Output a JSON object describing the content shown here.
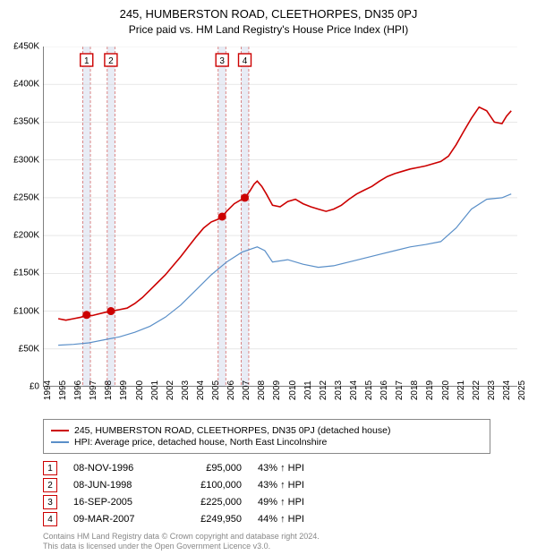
{
  "title": {
    "line1": "245, HUMBERSTON ROAD, CLEETHORPES, DN35 0PJ",
    "line2": "Price paid vs. HM Land Registry's House Price Index (HPI)"
  },
  "chart": {
    "type": "line",
    "background_color": "#ffffff",
    "grid_color": "#d9d9d9",
    "axis_color": "#000000",
    "xlim": [
      1994,
      2025
    ],
    "ylim": [
      0,
      450000
    ],
    "ytick_step": 50000,
    "yticks": [
      0,
      50000,
      100000,
      150000,
      200000,
      250000,
      300000,
      350000,
      400000,
      450000
    ],
    "ytick_labels": [
      "£0",
      "£50K",
      "£100K",
      "£150K",
      "£200K",
      "£250K",
      "£300K",
      "£350K",
      "£400K",
      "£450K"
    ],
    "xticks": [
      1994,
      1995,
      1996,
      1997,
      1998,
      1999,
      2000,
      2001,
      2002,
      2003,
      2004,
      2005,
      2006,
      2007,
      2008,
      2009,
      2010,
      2011,
      2012,
      2013,
      2014,
      2015,
      2016,
      2017,
      2018,
      2019,
      2020,
      2021,
      2022,
      2023,
      2024,
      2025
    ],
    "series": [
      {
        "id": "property",
        "label": "245, HUMBERSTON ROAD, CLEETHORPES, DN35 0PJ (detached house)",
        "color": "#cc0000",
        "line_width": 1.6,
        "data": [
          [
            1995.0,
            90000
          ],
          [
            1995.5,
            88000
          ],
          [
            1996.0,
            90000
          ],
          [
            1996.5,
            92000
          ],
          [
            1996.85,
            95000
          ],
          [
            1997.2,
            94000
          ],
          [
            1997.6,
            96000
          ],
          [
            1998.0,
            98000
          ],
          [
            1998.44,
            100000
          ],
          [
            1999.0,
            102000
          ],
          [
            1999.5,
            104000
          ],
          [
            2000.0,
            110000
          ],
          [
            2000.5,
            118000
          ],
          [
            2001.0,
            128000
          ],
          [
            2001.5,
            138000
          ],
          [
            2002.0,
            148000
          ],
          [
            2002.5,
            160000
          ],
          [
            2003.0,
            172000
          ],
          [
            2003.5,
            185000
          ],
          [
            2004.0,
            198000
          ],
          [
            2004.5,
            210000
          ],
          [
            2005.0,
            218000
          ],
          [
            2005.5,
            222000
          ],
          [
            2005.71,
            225000
          ],
          [
            2006.0,
            232000
          ],
          [
            2006.5,
            242000
          ],
          [
            2007.0,
            248000
          ],
          [
            2007.19,
            249950
          ],
          [
            2007.5,
            258000
          ],
          [
            2007.8,
            268000
          ],
          [
            2008.0,
            272000
          ],
          [
            2008.3,
            265000
          ],
          [
            2008.6,
            255000
          ],
          [
            2009.0,
            240000
          ],
          [
            2009.5,
            238000
          ],
          [
            2010.0,
            245000
          ],
          [
            2010.5,
            248000
          ],
          [
            2011.0,
            242000
          ],
          [
            2011.5,
            238000
          ],
          [
            2012.0,
            235000
          ],
          [
            2012.5,
            232000
          ],
          [
            2013.0,
            235000
          ],
          [
            2013.5,
            240000
          ],
          [
            2014.0,
            248000
          ],
          [
            2014.5,
            255000
          ],
          [
            2015.0,
            260000
          ],
          [
            2015.5,
            265000
          ],
          [
            2016.0,
            272000
          ],
          [
            2016.5,
            278000
          ],
          [
            2017.0,
            282000
          ],
          [
            2017.5,
            285000
          ],
          [
            2018.0,
            288000
          ],
          [
            2018.5,
            290000
          ],
          [
            2019.0,
            292000
          ],
          [
            2019.5,
            295000
          ],
          [
            2020.0,
            298000
          ],
          [
            2020.5,
            305000
          ],
          [
            2021.0,
            320000
          ],
          [
            2021.5,
            338000
          ],
          [
            2022.0,
            355000
          ],
          [
            2022.5,
            370000
          ],
          [
            2023.0,
            365000
          ],
          [
            2023.5,
            350000
          ],
          [
            2024.0,
            348000
          ],
          [
            2024.3,
            358000
          ],
          [
            2024.6,
            365000
          ]
        ]
      },
      {
        "id": "hpi",
        "label": "HPI: Average price, detached house, North East Lincolnshire",
        "color": "#5a8fc8",
        "line_width": 1.2,
        "data": [
          [
            1995.0,
            55000
          ],
          [
            1996.0,
            56000
          ],
          [
            1997.0,
            58000
          ],
          [
            1998.0,
            62000
          ],
          [
            1999.0,
            66000
          ],
          [
            2000.0,
            72000
          ],
          [
            2001.0,
            80000
          ],
          [
            2002.0,
            92000
          ],
          [
            2003.0,
            108000
          ],
          [
            2004.0,
            128000
          ],
          [
            2005.0,
            148000
          ],
          [
            2006.0,
            165000
          ],
          [
            2007.0,
            178000
          ],
          [
            2008.0,
            185000
          ],
          [
            2008.5,
            180000
          ],
          [
            2009.0,
            165000
          ],
          [
            2010.0,
            168000
          ],
          [
            2011.0,
            162000
          ],
          [
            2012.0,
            158000
          ],
          [
            2013.0,
            160000
          ],
          [
            2014.0,
            165000
          ],
          [
            2015.0,
            170000
          ],
          [
            2016.0,
            175000
          ],
          [
            2017.0,
            180000
          ],
          [
            2018.0,
            185000
          ],
          [
            2019.0,
            188000
          ],
          [
            2020.0,
            192000
          ],
          [
            2021.0,
            210000
          ],
          [
            2022.0,
            235000
          ],
          [
            2023.0,
            248000
          ],
          [
            2024.0,
            250000
          ],
          [
            2024.6,
            255000
          ]
        ]
      }
    ],
    "sale_markers": {
      "band_fill": "#e8ecf5",
      "band_dash_color": "#d46a6a",
      "dot_color": "#cc0000",
      "dot_radius": 4.5,
      "box_border": "#cc0000",
      "items": [
        {
          "n": "1",
          "x": 1996.85,
          "y": 95000,
          "band": [
            1996.6,
            1997.1
          ]
        },
        {
          "n": "2",
          "x": 1998.44,
          "y": 100000,
          "band": [
            1998.2,
            1998.7
          ]
        },
        {
          "n": "3",
          "x": 2005.71,
          "y": 225000,
          "band": [
            2005.45,
            2005.95
          ]
        },
        {
          "n": "4",
          "x": 2007.19,
          "y": 249950,
          "band": [
            2006.95,
            2007.45
          ]
        }
      ]
    }
  },
  "legend": {
    "items": [
      {
        "color": "#cc0000",
        "width": 2,
        "label": "245, HUMBERSTON ROAD, CLEETHORPES, DN35 0PJ (detached house)"
      },
      {
        "color": "#5a8fc8",
        "width": 1.2,
        "label": "HPI: Average price, detached house, North East Lincolnshire"
      }
    ]
  },
  "sales": [
    {
      "n": "1",
      "date": "08-NOV-1996",
      "price": "£95,000",
      "pct": "43% ↑ HPI"
    },
    {
      "n": "2",
      "date": "08-JUN-1998",
      "price": "£100,000",
      "pct": "43% ↑ HPI"
    },
    {
      "n": "3",
      "date": "16-SEP-2005",
      "price": "£225,000",
      "pct": "49% ↑ HPI"
    },
    {
      "n": "4",
      "date": "09-MAR-2007",
      "price": "£249,950",
      "pct": "44% ↑ HPI"
    }
  ],
  "footer": {
    "line1": "Contains HM Land Registry data © Crown copyright and database right 2024.",
    "line2": "This data is licensed under the Open Government Licence v3.0."
  }
}
